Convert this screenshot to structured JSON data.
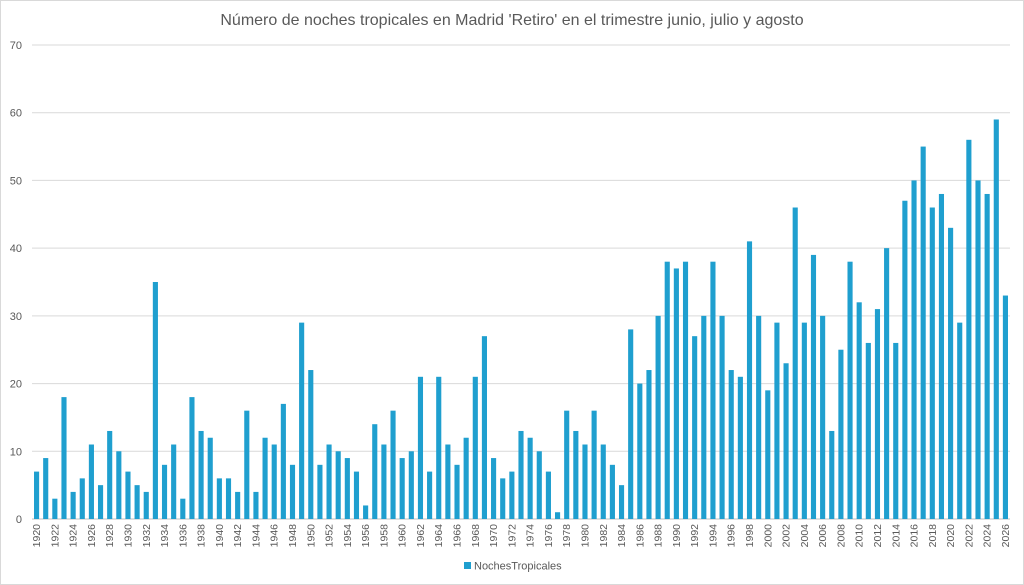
{
  "chart_data": {
    "type": "bar",
    "title": "Número de noches tropicales en Madrid 'Retiro' en el trimestre junio, julio y agosto",
    "xlabel": "",
    "ylabel": "",
    "ylim": [
      0,
      70
    ],
    "yticks": [
      0,
      10,
      20,
      30,
      40,
      50,
      60,
      70
    ],
    "grid": true,
    "legend_position": "bottom",
    "bar_color": "#1f9fcf",
    "series_name": "NochesTropicales",
    "x_start": 1920,
    "x_end": 2026,
    "x_label_step": 2,
    "values": [
      7,
      9,
      3,
      18,
      4,
      6,
      11,
      5,
      13,
      10,
      7,
      5,
      4,
      35,
      8,
      11,
      3,
      18,
      13,
      12,
      6,
      6,
      4,
      16,
      4,
      12,
      11,
      17,
      8,
      29,
      22,
      8,
      11,
      10,
      9,
      7,
      2,
      14,
      11,
      16,
      9,
      10,
      21,
      7,
      21,
      11,
      8,
      12,
      21,
      27,
      9,
      6,
      7,
      13,
      12,
      10,
      7,
      1,
      16,
      13,
      11,
      16,
      11,
      8,
      5,
      28,
      20,
      22,
      30,
      38,
      37,
      38,
      27,
      30,
      38,
      30,
      22,
      21,
      41,
      30,
      19,
      29,
      23,
      46,
      29,
      39,
      30,
      13,
      25,
      38,
      32,
      26,
      31,
      40,
      26,
      47,
      50,
      55,
      46,
      48,
      43,
      29,
      56,
      50,
      48,
      59,
      33
    ]
  }
}
